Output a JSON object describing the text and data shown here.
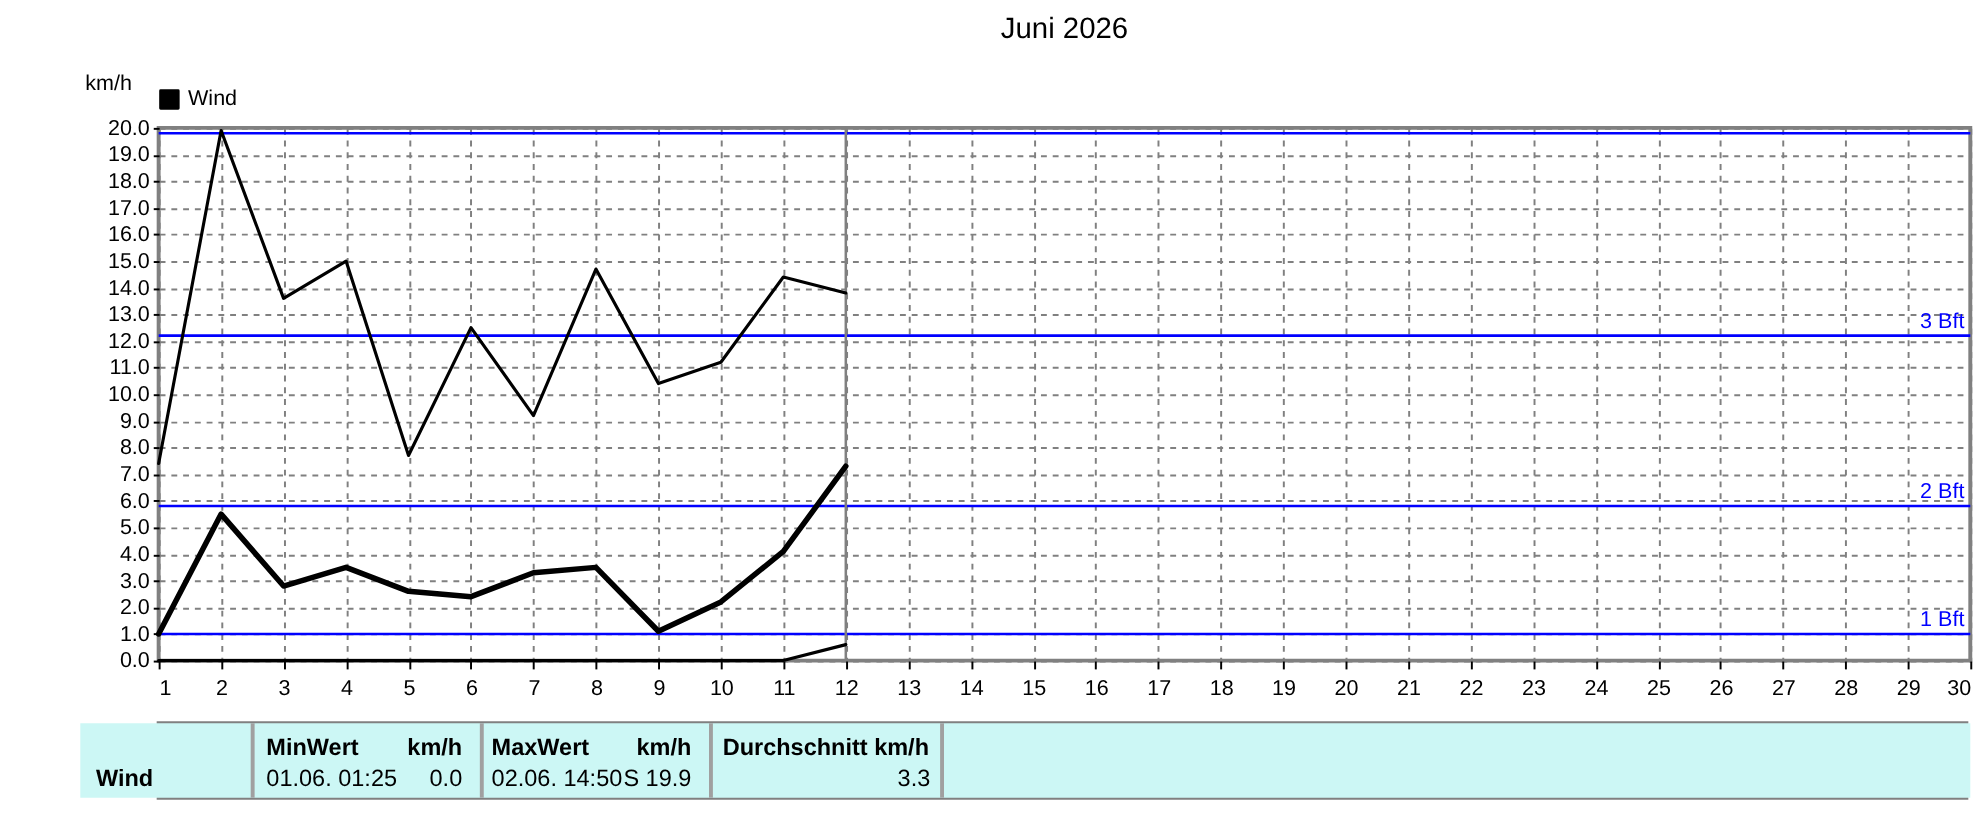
{
  "chart_data": {
    "type": "line",
    "title": "Juni 2026",
    "ylabel": "km/h",
    "x": [
      1,
      2,
      3,
      4,
      5,
      6,
      7,
      8,
      9,
      10,
      11,
      12
    ],
    "series": [
      {
        "color": "#000000",
        "values": [
          7.4,
          19.9,
          13.6,
          15.0,
          7.7,
          12.5,
          9.2,
          14.7,
          10.4,
          11.2,
          14.4,
          13.8
        ]
      },
      {
        "name": "Wind",
        "color": "#000000",
        "values": [
          1.0,
          5.5,
          2.8,
          3.5,
          2.6,
          2.4,
          3.3,
          3.5,
          1.1,
          2.2,
          4.1,
          7.3
        ]
      },
      {
        "color": "#000000",
        "values": [
          0.0,
          0.0,
          0.0,
          0.0,
          0.0,
          0.0,
          0.0,
          0.0,
          0.0,
          0.0,
          0.0,
          0.6
        ]
      }
    ],
    "xlim": [
      1,
      30
    ],
    "xticks": [
      1,
      2,
      3,
      4,
      5,
      6,
      7,
      8,
      9,
      10,
      11,
      12,
      13,
      14,
      15,
      16,
      17,
      18,
      19,
      20,
      21,
      22,
      23,
      24,
      25,
      26,
      27,
      28,
      29,
      30
    ],
    "ylim": [
      0,
      20
    ],
    "yticks": [
      {
        "value": 0,
        "label": "0.0"
      },
      {
        "value": 1,
        "label": "1.0"
      },
      {
        "value": 2,
        "label": "2.0"
      },
      {
        "value": 3,
        "label": "3.0"
      },
      {
        "value": 4,
        "label": "4.0"
      },
      {
        "value": 5,
        "label": "5.0"
      },
      {
        "value": 6,
        "label": "6.0"
      },
      {
        "value": 7,
        "label": "7.0"
      },
      {
        "value": 8,
        "label": "8.0"
      },
      {
        "value": 9,
        "label": "9.0"
      },
      {
        "value": 10,
        "label": "10.0"
      },
      {
        "value": 11,
        "label": "11.0"
      },
      {
        "value": 12,
        "label": "12.0"
      },
      {
        "value": 13,
        "label": "13.0"
      },
      {
        "value": 14,
        "label": "14.0"
      },
      {
        "value": 15,
        "label": "15.0"
      },
      {
        "value": 16,
        "label": "16.0"
      },
      {
        "value": 17,
        "label": "17.0"
      },
      {
        "value": 18,
        "label": "18.0"
      },
      {
        "value": 19,
        "label": "19.0"
      },
      {
        "value": 20,
        "label": "20.0"
      }
    ],
    "grid": true,
    "legend": "top left",
    "marker": "none",
    "line_style": "solid",
    "ref_lines": [
      {
        "axis": "y",
        "value": 19.8,
        "color": "#0000ff"
      },
      {
        "axis": "y",
        "value": 12.2,
        "label": "3 Bft",
        "color": "#0000ff"
      },
      {
        "axis": "y",
        "value": 5.8,
        "label": "2 Bft",
        "color": "#0000ff"
      },
      {
        "axis": "y",
        "value": 1.0,
        "label": "1 Bft",
        "color": "#0000ff"
      },
      {
        "axis": "x",
        "value": 12,
        "color": "#808080"
      }
    ],
    "annotations": [
      "Wind",
      "MinWert",
      "km/h",
      "01.06.  01:25",
      "0.0",
      "MaxWert",
      "km/h",
      "02.06.  14:50",
      "S 19.9",
      "Durchschnitt km/h",
      "3.3"
    ]
  }
}
